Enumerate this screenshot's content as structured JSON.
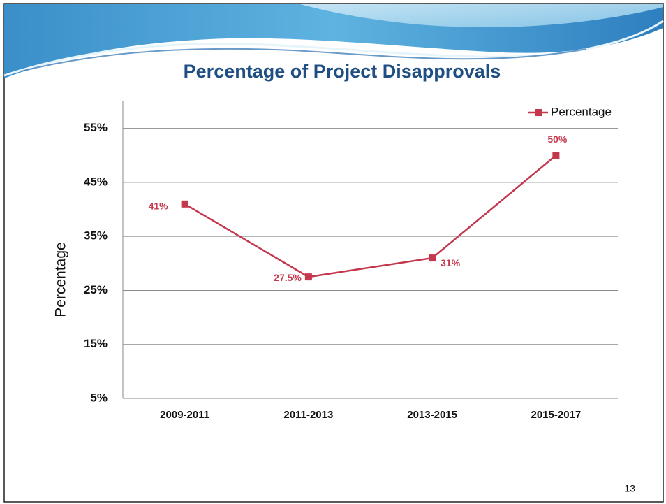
{
  "chart_data": {
    "type": "line",
    "title": "Percentage of Project Disapprovals",
    "y_axis_label": "Percentage",
    "categories": [
      "2009-2011",
      "2011-2013",
      "2013-2015",
      "2015-2017"
    ],
    "series": [
      {
        "name": "Percentage",
        "color": "#c4384e",
        "values": [
          41,
          27.5,
          31,
          50
        ],
        "value_labels": [
          "41%",
          "27.5%",
          "31%",
          "50%"
        ]
      }
    ],
    "ylim": [
      5,
      60
    ],
    "yticks": [
      {
        "value": 5,
        "label": "5%"
      },
      {
        "value": 15,
        "label": "15%"
      },
      {
        "value": 25,
        "label": "25%"
      },
      {
        "value": 35,
        "label": "35%"
      },
      {
        "value": 45,
        "label": "45%"
      },
      {
        "value": 55,
        "label": "55%"
      }
    ],
    "grid": true,
    "legend": "top-right",
    "page_number": "13"
  }
}
